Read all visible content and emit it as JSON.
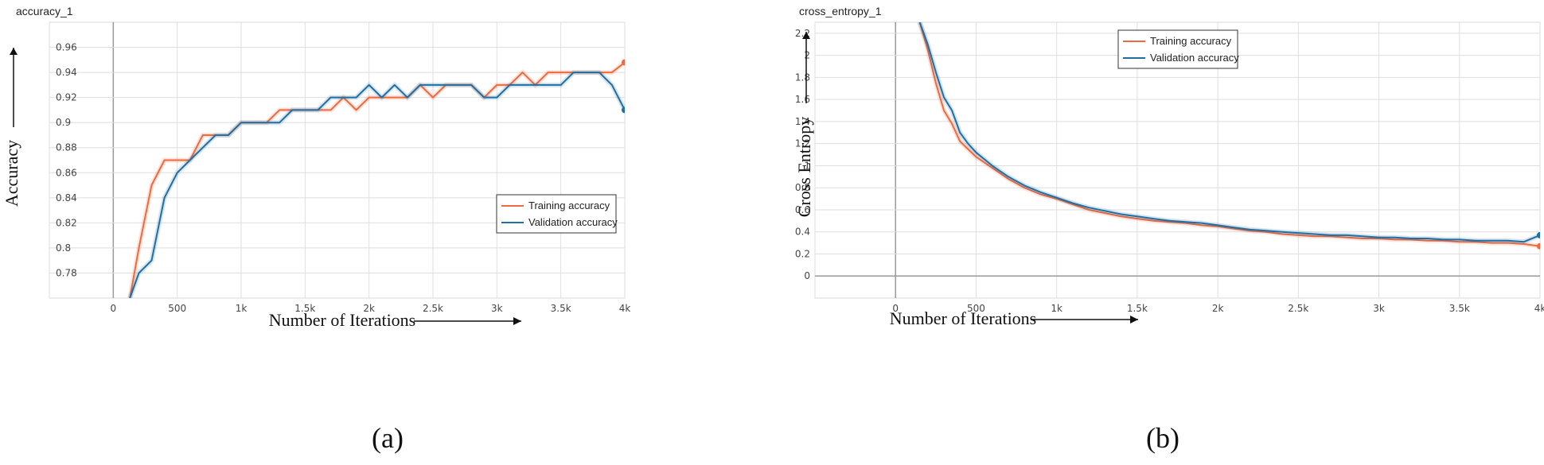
{
  "chart_data": [
    {
      "type": "line",
      "title": "accuracy_1",
      "xlabel": "Number of Iterations",
      "ylabel": "Accuracy",
      "xlim": [
        -500,
        4000
      ],
      "ylim": [
        0.76,
        0.98
      ],
      "x_ticks": [
        0,
        500,
        1000,
        1500,
        2000,
        2500,
        3000,
        3500,
        4000
      ],
      "x_tick_labels": [
        "0",
        "500",
        "1k",
        "1.5k",
        "2k",
        "2.5k",
        "3k",
        "3.5k",
        "4k"
      ],
      "y_ticks": [
        0.78,
        0.8,
        0.82,
        0.84,
        0.86,
        0.88,
        0.9,
        0.92,
        0.94,
        0.96
      ],
      "y_tick_labels": [
        "0.78",
        "0.8",
        "0.82",
        "0.84",
        "0.86",
        "0.88",
        "0.9",
        "0.92",
        "0.94",
        "0.96"
      ],
      "grid": true,
      "legend": "lower-right",
      "panel_label": "(a)",
      "series": [
        {
          "name": "Training accuracy",
          "color": "#ee6a3f",
          "x": [
            130,
            200,
            300,
            400,
            500,
            600,
            700,
            800,
            900,
            1000,
            1100,
            1200,
            1300,
            1400,
            1500,
            1600,
            1700,
            1800,
            1900,
            2000,
            2100,
            2200,
            2300,
            2400,
            2500,
            2600,
            2700,
            2800,
            2900,
            3000,
            3100,
            3200,
            3300,
            3400,
            3500,
            3600,
            3700,
            3800,
            3900,
            4000
          ],
          "values": [
            0.76,
            0.8,
            0.85,
            0.87,
            0.87,
            0.87,
            0.89,
            0.89,
            0.89,
            0.9,
            0.9,
            0.9,
            0.91,
            0.91,
            0.91,
            0.91,
            0.91,
            0.92,
            0.91,
            0.92,
            0.92,
            0.92,
            0.92,
            0.93,
            0.92,
            0.93,
            0.93,
            0.93,
            0.92,
            0.93,
            0.93,
            0.94,
            0.93,
            0.94,
            0.94,
            0.94,
            0.94,
            0.94,
            0.94,
            0.948
          ]
        },
        {
          "name": "Validation accuracy",
          "color": "#1f6fa3",
          "x": [
            130,
            200,
            300,
            400,
            500,
            600,
            700,
            800,
            900,
            1000,
            1100,
            1200,
            1300,
            1400,
            1500,
            1600,
            1700,
            1800,
            1900,
            2000,
            2100,
            2200,
            2300,
            2400,
            2500,
            2600,
            2700,
            2800,
            2900,
            3000,
            3100,
            3200,
            3300,
            3400,
            3500,
            3600,
            3700,
            3800,
            3900,
            4000
          ],
          "values": [
            0.76,
            0.78,
            0.79,
            0.84,
            0.86,
            0.87,
            0.88,
            0.89,
            0.89,
            0.9,
            0.9,
            0.9,
            0.9,
            0.91,
            0.91,
            0.91,
            0.92,
            0.92,
            0.92,
            0.93,
            0.92,
            0.93,
            0.92,
            0.93,
            0.93,
            0.93,
            0.93,
            0.93,
            0.92,
            0.92,
            0.93,
            0.93,
            0.93,
            0.93,
            0.93,
            0.94,
            0.94,
            0.94,
            0.93,
            0.91
          ]
        }
      ]
    },
    {
      "type": "line",
      "title": "cross_entropy_1",
      "xlabel": "Number of Iterations",
      "ylabel": "Cross Entropy",
      "xlim": [
        -500,
        4000
      ],
      "ylim": [
        -0.2,
        2.3
      ],
      "x_ticks": [
        0,
        500,
        1000,
        1500,
        2000,
        2500,
        3000,
        3500,
        4000
      ],
      "x_tick_labels": [
        "0",
        "500",
        "1k",
        "1.5k",
        "2k",
        "2.5k",
        "3k",
        "3.5k",
        "4k"
      ],
      "y_ticks": [
        0,
        0.2,
        0.4,
        0.6,
        0.8,
        1,
        1.2,
        1.4,
        1.6,
        1.8,
        2,
        2.2
      ],
      "y_tick_labels": [
        "0",
        "0.2",
        "0.4",
        "0.6",
        "0.8",
        "1",
        "1.2",
        "1.4",
        "1.6",
        "1.8",
        "2",
        "2.2"
      ],
      "grid": true,
      "legend": "top-right",
      "panel_label": "(b)",
      "series": [
        {
          "name": "Training accuracy",
          "color": "#ee6a3f",
          "x": [
            150,
            200,
            250,
            300,
            350,
            400,
            450,
            500,
            600,
            700,
            800,
            900,
            1000,
            1100,
            1200,
            1300,
            1400,
            1500,
            1600,
            1700,
            1800,
            1900,
            2000,
            2100,
            2200,
            2300,
            2400,
            2500,
            2600,
            2700,
            2800,
            2900,
            3000,
            3100,
            3200,
            3300,
            3400,
            3500,
            3600,
            3700,
            3800,
            3900,
            4000
          ],
          "values": [
            2.3,
            2.05,
            1.75,
            1.5,
            1.38,
            1.22,
            1.15,
            1.08,
            0.98,
            0.88,
            0.8,
            0.74,
            0.7,
            0.65,
            0.6,
            0.57,
            0.54,
            0.52,
            0.5,
            0.49,
            0.48,
            0.46,
            0.45,
            0.43,
            0.41,
            0.4,
            0.38,
            0.37,
            0.36,
            0.36,
            0.35,
            0.34,
            0.34,
            0.33,
            0.33,
            0.32,
            0.32,
            0.31,
            0.31,
            0.3,
            0.3,
            0.29,
            0.27
          ]
        },
        {
          "name": "Validation accuracy",
          "color": "#1f6fa3",
          "x": [
            150,
            200,
            250,
            300,
            350,
            400,
            450,
            500,
            600,
            700,
            800,
            900,
            1000,
            1100,
            1200,
            1300,
            1400,
            1500,
            1600,
            1700,
            1800,
            1900,
            2000,
            2100,
            2200,
            2300,
            2400,
            2500,
            2600,
            2700,
            2800,
            2900,
            3000,
            3100,
            3200,
            3300,
            3400,
            3500,
            3600,
            3700,
            3800,
            3900,
            4000
          ],
          "values": [
            2.3,
            2.1,
            1.85,
            1.62,
            1.5,
            1.3,
            1.2,
            1.12,
            1.0,
            0.9,
            0.82,
            0.76,
            0.71,
            0.66,
            0.62,
            0.59,
            0.56,
            0.54,
            0.52,
            0.5,
            0.49,
            0.48,
            0.46,
            0.44,
            0.42,
            0.41,
            0.4,
            0.39,
            0.38,
            0.37,
            0.37,
            0.36,
            0.35,
            0.35,
            0.34,
            0.34,
            0.33,
            0.33,
            0.32,
            0.32,
            0.32,
            0.31,
            0.37
          ]
        }
      ]
    }
  ]
}
